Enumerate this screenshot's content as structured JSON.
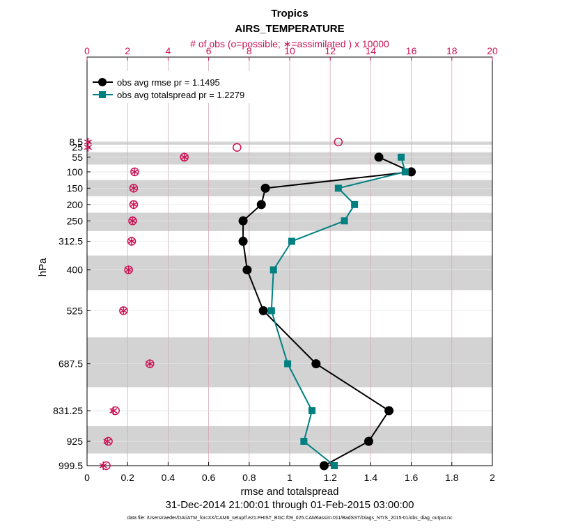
{
  "chart_data": {
    "type": "line",
    "title": "Tropics",
    "subtitle": "AIRS_TEMPERATURE",
    "top_axis_label": "# of obs (o=possible; ∗=assimilated ) x 10000",
    "xlabel": "rmse and totalspread",
    "ylabel": "hPa",
    "date_range": "31-Dec-2014 21:00:01 through 01-Feb-2015 03:00:00",
    "footnote": "data file: /Users/raeder/DAI/ATM_forcXX/CAM6_setup/f.e21.FHIST_BGC.f09_025.CAM6assim.011/BadSST/Diags_NTrS_2015-01/obs_diag_output.nc",
    "xlim": [
      0,
      2
    ],
    "x_ticks": [
      "0",
      "0.2",
      "0.4",
      "0.6",
      "0.8",
      "1",
      "1.2",
      "1.4",
      "1.6",
      "1.8",
      "2"
    ],
    "top_xlim": [
      0,
      20
    ],
    "top_ticks": [
      "0",
      "2",
      "4",
      "6",
      "8",
      "10",
      "12",
      "14",
      "16",
      "18",
      "20"
    ],
    "levels": [
      "8.5",
      "25",
      "55",
      "100",
      "150",
      "200",
      "250",
      "312.5",
      "400",
      "525",
      "687.5",
      "831.25",
      "925",
      "999.5"
    ],
    "level_values": [
      8.5,
      25,
      55,
      100,
      150,
      200,
      250,
      312.5,
      400,
      525,
      687.5,
      831.25,
      925,
      999.5
    ],
    "series": [
      {
        "name": "obs avg rmse pr = 1.1495",
        "color": "#000000",
        "marker": "circle",
        "values": [
          null,
          null,
          1.44,
          1.6,
          0.88,
          0.86,
          0.77,
          0.77,
          0.79,
          0.87,
          1.13,
          1.49,
          1.39,
          1.17
        ]
      },
      {
        "name": "obs avg totalspread pr = 1.2279",
        "color": "#008080",
        "marker": "square",
        "values": [
          null,
          null,
          1.55,
          1.57,
          1.24,
          1.32,
          1.27,
          1.01,
          0.92,
          0.91,
          0.99,
          1.11,
          1.07,
          1.22
        ]
      }
    ],
    "obs_possible": [
      12.4,
      7.4,
      4.8,
      2.35,
      2.3,
      2.3,
      2.25,
      2.2,
      2.05,
      1.8,
      3.1,
      1.4,
      1.05,
      0.95
    ],
    "obs_assimilated": [
      0.05,
      0.05,
      4.8,
      2.35,
      2.3,
      2.3,
      2.25,
      2.2,
      2.05,
      1.8,
      3.1,
      1.3,
      1.0,
      0.8
    ],
    "colors": {
      "obs": "#cc1155",
      "rmse": "#000000",
      "spread": "#008080",
      "band": "#d3d3d3",
      "grid_v": "#d6a9b8",
      "grid_h": "#e4e4e4"
    },
    "grid": true,
    "legend_position": "top-left"
  }
}
